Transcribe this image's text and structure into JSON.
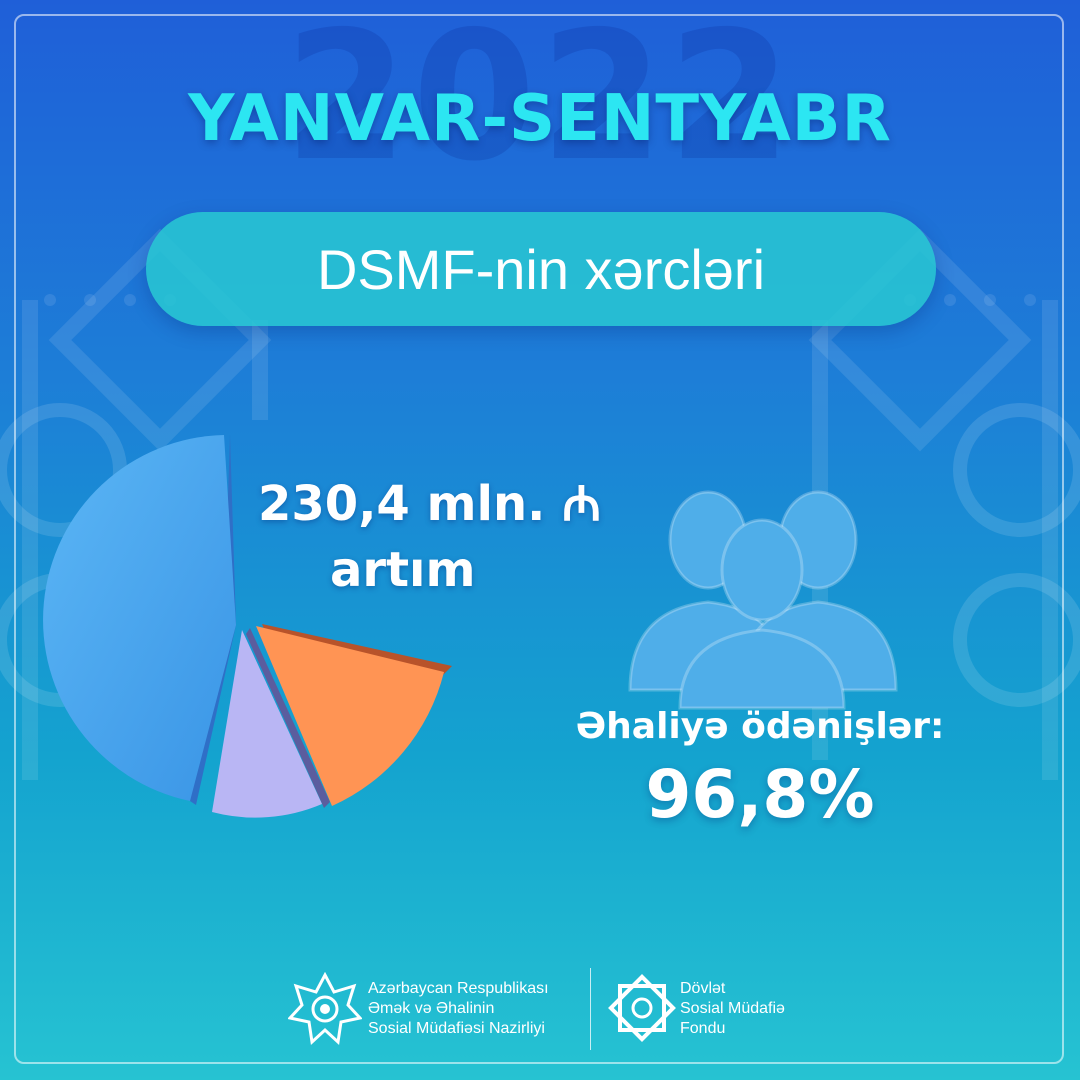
{
  "header": {
    "year_watermark": "2022",
    "period": "YANVAR-SENTYABR"
  },
  "banner": {
    "title": "DSMF-nin xərcləri"
  },
  "pie_callout": {
    "amount": "230,4 mln. ₼",
    "label": "artım"
  },
  "stat": {
    "label": "Əhaliyə ödənişlər:",
    "value": "96,8%"
  },
  "footer": {
    "ministry_lines": [
      "Azərbaycan Respublikası",
      "Əmək və Əhalinin",
      "Sosial Müdafiəsi Nazirliyi"
    ],
    "fund_lines": [
      "Dövlət",
      "Sosial Müdafiə",
      "Fondu"
    ]
  },
  "icons": {
    "pie": "pie-chart-icon",
    "people": "people-group-icon",
    "ministry_logo": "ministry-star-emblem-icon",
    "fund_logo": "fund-emblem-icon"
  },
  "colors": {
    "title": "#2ce6f2",
    "pie_blue": "#4aaaf0",
    "pie_orange": "#ff9454",
    "pie_lavender": "#b9b6f4",
    "pill": "#28c8d2"
  }
}
